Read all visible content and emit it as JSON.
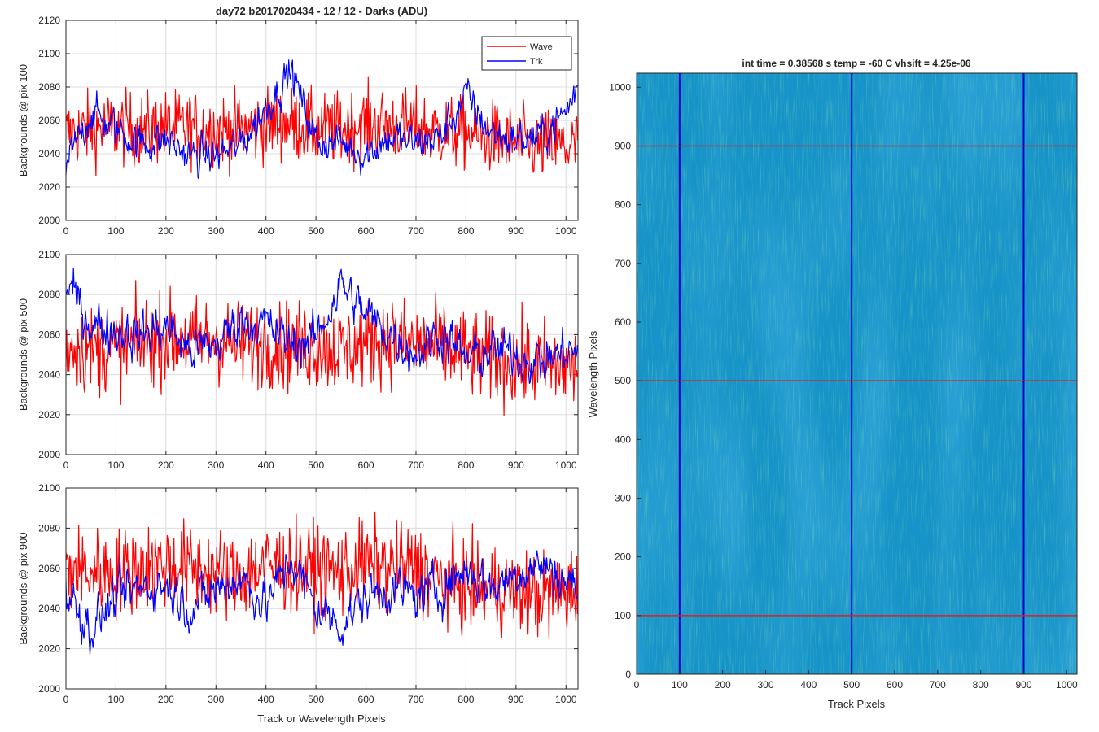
{
  "figure": {
    "title": "day72 b2017020434 - 12 / 12 - Darks (ADU)",
    "line_colors": {
      "wave": "#ff0000",
      "trk": "#0000ff"
    },
    "legend": {
      "entries": [
        "Wave",
        "Trk"
      ],
      "placement": "top-right of first plot"
    },
    "shared_xlabel": "Track or Wavelength Pixels"
  },
  "chart_data": [
    {
      "type": "line",
      "ylabel": "Backgrounds @ pix 100",
      "xlim": [
        0,
        1024
      ],
      "ylim": [
        2000,
        2120
      ],
      "xticks": [
        "0",
        "100",
        "200",
        "300",
        "400",
        "500",
        "600",
        "700",
        "800",
        "900",
        "1000"
      ],
      "yticks": [
        "2000",
        "2020",
        "2040",
        "2060",
        "2080",
        "2100",
        "2120"
      ],
      "grid": true,
      "series": [
        {
          "name": "Wave",
          "color": "#ff0000",
          "x": [
            0,
            50,
            100,
            150,
            200,
            250,
            300,
            350,
            400,
            450,
            500,
            550,
            600,
            650,
            700,
            750,
            800,
            850,
            900,
            950,
            1000,
            1024
          ],
          "values": [
            2052,
            2055,
            2056,
            2054,
            2056,
            2056,
            2055,
            2054,
            2057,
            2058,
            2054,
            2055,
            2058,
            2057,
            2056,
            2053,
            2052,
            2050,
            2046,
            2045,
            2044,
            2045
          ]
        },
        {
          "name": "Trk",
          "color": "#0000ff",
          "x": [
            0,
            50,
            100,
            150,
            200,
            250,
            300,
            350,
            400,
            450,
            500,
            550,
            600,
            650,
            700,
            750,
            800,
            850,
            900,
            950,
            1000,
            1024
          ],
          "values": [
            2032,
            2065,
            2055,
            2046,
            2048,
            2038,
            2039,
            2045,
            2068,
            2090,
            2048,
            2046,
            2040,
            2050,
            2046,
            2050,
            2075,
            2052,
            2048,
            2050,
            2065,
            2080
          ]
        }
      ]
    },
    {
      "type": "line",
      "ylabel": "Backgrounds @ pix 500",
      "xlim": [
        0,
        1024
      ],
      "ylim": [
        2000,
        2100
      ],
      "xticks": [
        "0",
        "100",
        "200",
        "300",
        "400",
        "500",
        "600",
        "700",
        "800",
        "900",
        "1000"
      ],
      "yticks": [
        "2000",
        "2020",
        "2040",
        "2060",
        "2080",
        "2100"
      ],
      "grid": true,
      "series": [
        {
          "name": "Wave",
          "color": "#ff0000",
          "x": [
            0,
            50,
            100,
            150,
            200,
            250,
            300,
            350,
            400,
            450,
            500,
            550,
            600,
            650,
            700,
            750,
            800,
            850,
            900,
            950,
            1000,
            1024
          ],
          "values": [
            2055,
            2052,
            2053,
            2056,
            2058,
            2057,
            2058,
            2055,
            2056,
            2054,
            2054,
            2052,
            2056,
            2058,
            2055,
            2054,
            2050,
            2048,
            2046,
            2045,
            2044,
            2042
          ]
        },
        {
          "name": "Trk",
          "color": "#0000ff",
          "x": [
            0,
            50,
            100,
            150,
            200,
            250,
            300,
            350,
            400,
            450,
            500,
            550,
            600,
            650,
            700,
            750,
            800,
            850,
            900,
            950,
            1000,
            1024
          ],
          "values": [
            2085,
            2066,
            2062,
            2060,
            2064,
            2052,
            2055,
            2068,
            2065,
            2055,
            2058,
            2085,
            2070,
            2060,
            2050,
            2062,
            2048,
            2052,
            2050,
            2046,
            2052,
            2050
          ]
        }
      ]
    },
    {
      "type": "line",
      "ylabel": "Backgrounds @ pix 900",
      "xlabel": "Track or Wavelength Pixels",
      "xlim": [
        0,
        1024
      ],
      "ylim": [
        2000,
        2100
      ],
      "xticks": [
        "0",
        "100",
        "200",
        "300",
        "400",
        "500",
        "600",
        "700",
        "800",
        "900",
        "1000"
      ],
      "yticks": [
        "2000",
        "2020",
        "2040",
        "2060",
        "2080",
        "2100"
      ],
      "grid": true,
      "series": [
        {
          "name": "Wave",
          "color": "#ff0000",
          "x": [
            0,
            50,
            100,
            150,
            200,
            250,
            300,
            350,
            400,
            450,
            500,
            550,
            600,
            650,
            700,
            750,
            800,
            850,
            900,
            950,
            1000,
            1024
          ],
          "values": [
            2060,
            2058,
            2058,
            2060,
            2062,
            2060,
            2058,
            2056,
            2062,
            2060,
            2060,
            2058,
            2062,
            2060,
            2060,
            2054,
            2050,
            2050,
            2048,
            2046,
            2048,
            2050
          ]
        },
        {
          "name": "Trk",
          "color": "#0000ff",
          "x": [
            0,
            50,
            100,
            150,
            200,
            250,
            300,
            350,
            400,
            450,
            500,
            550,
            600,
            650,
            700,
            750,
            800,
            850,
            900,
            950,
            1000,
            1024
          ],
          "values": [
            2048,
            2030,
            2045,
            2050,
            2052,
            2040,
            2050,
            2055,
            2042,
            2065,
            2040,
            2032,
            2046,
            2050,
            2046,
            2050,
            2060,
            2050,
            2058,
            2062,
            2054,
            2050
          ]
        }
      ]
    },
    {
      "type": "heatmap",
      "title": "int time = 0.38568 s   temp = -60 C   vhsift = 4.25e-06",
      "xlabel": "Track Pixels",
      "ylabel": "Wavelength Pixels",
      "xlim": [
        0,
        1024
      ],
      "ylim": [
        0,
        1024
      ],
      "xticks": [
        "0",
        "100",
        "200",
        "300",
        "400",
        "500",
        "600",
        "700",
        "800",
        "900",
        "1000"
      ],
      "yticks": [
        "0",
        "100",
        "200",
        "300",
        "400",
        "500",
        "600",
        "700",
        "800",
        "900",
        "1000"
      ],
      "colormap": [
        "#0f75c9",
        "#17a3c2",
        "#2cb0a9",
        "#7cc16c"
      ],
      "vertical_markers": {
        "color": "#0000cc",
        "x": [
          100,
          500,
          900
        ]
      },
      "horizontal_markers": {
        "color": "#dd2020",
        "y": [
          100,
          500,
          900
        ]
      }
    }
  ]
}
